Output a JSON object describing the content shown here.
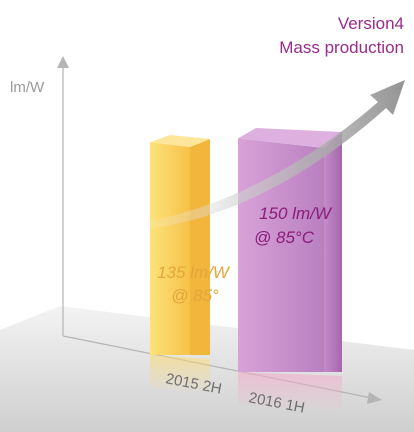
{
  "chart_data": {
    "type": "bar",
    "title": "",
    "ylabel": "lm/W",
    "xlabel": "",
    "categories": [
      "2015 2H",
      "2016 1H"
    ],
    "values": [
      135,
      150
    ],
    "ylim": [
      0,
      190
    ],
    "grid": false,
    "annotations": [
      {
        "line1": "135 lm/W",
        "line2": "@ 85°",
        "color": "#e4a63a"
      },
      {
        "line1": "150 lm/W",
        "line2": "@ 85°C",
        "color": "#8b1c7a"
      }
    ],
    "callout": {
      "line1": "Version4",
      "line2": "Mass production",
      "color": "#9a2a8c"
    }
  },
  "colors": {
    "bar1_front": "#fcd35a",
    "bar1_side": "#f2b63c",
    "bar1_top": "#fde59a",
    "bar2_front": "#c98ccc",
    "bar2_side": "#b274b8",
    "bar2_top": "#deb0e0",
    "floor": "#e4e4e4",
    "axis": "#b5b5b5",
    "arrow": "#9a9a9a"
  }
}
